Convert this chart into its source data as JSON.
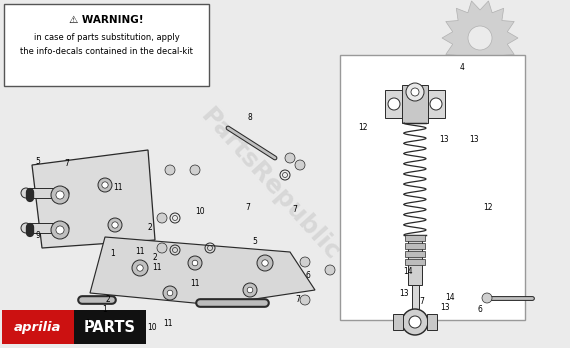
{
  "bg_color": "#ebebeb",
  "warning_title": "⚠ WARNING!",
  "warning_line1": "in case of parts substitution, apply",
  "warning_line2": "the info-decals contained in the decal-kit",
  "aprilia_red": "#cc1111",
  "parts_black": "#111111",
  "diagram_color": "#2a2a2a",
  "watermark_color": "#c8c8c8",
  "line_color": "#222222"
}
